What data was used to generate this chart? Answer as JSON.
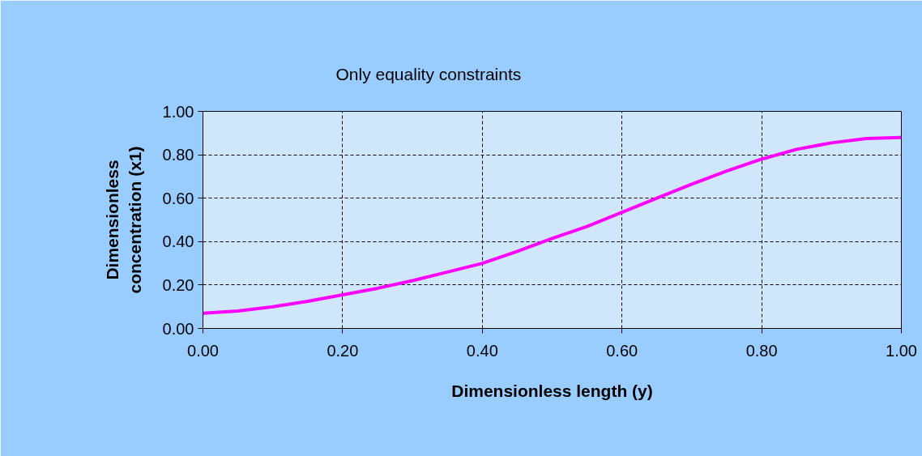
{
  "chart_data": {
    "type": "line",
    "title": "Only equality constraints",
    "xlabel": "Dimensionless length (y)",
    "ylabel": "Dimensionless concentration (x1)",
    "x": [
      0,
      0.05,
      0.1,
      0.15,
      0.2,
      0.25,
      0.3,
      0.35,
      0.4,
      0.45,
      0.5,
      0.55,
      0.6,
      0.65,
      0.7,
      0.75,
      0.8,
      0.85,
      0.9,
      0.95,
      1.0
    ],
    "series": [
      {
        "color": "#ff00ff",
        "values": [
          0.07,
          0.08,
          0.1,
          0.125,
          0.155,
          0.185,
          0.22,
          0.26,
          0.3,
          0.355,
          0.415,
          0.47,
          0.535,
          0.6,
          0.665,
          0.725,
          0.78,
          0.825,
          0.855,
          0.875,
          0.88
        ]
      }
    ],
    "xlim": [
      0,
      1
    ],
    "ylim": [
      0,
      1
    ],
    "xticks": [
      {
        "value": 0,
        "label": "0.00"
      },
      {
        "value": 0.2,
        "label": "0.20"
      },
      {
        "value": 0.4,
        "label": "0.40"
      },
      {
        "value": 0.6,
        "label": "0.60"
      },
      {
        "value": 0.8,
        "label": "0.80"
      },
      {
        "value": 1,
        "label": "1.00"
      }
    ],
    "yticks": [
      {
        "value": 0,
        "label": "0.00"
      },
      {
        "value": 0.2,
        "label": "0.20"
      },
      {
        "value": 0.4,
        "label": "0.40"
      },
      {
        "value": 0.6,
        "label": "0.60"
      },
      {
        "value": 0.8,
        "label": "0.80"
      },
      {
        "value": 1,
        "label": "1.00"
      }
    ],
    "grid": true,
    "line_style": "solid",
    "marker": "none"
  }
}
